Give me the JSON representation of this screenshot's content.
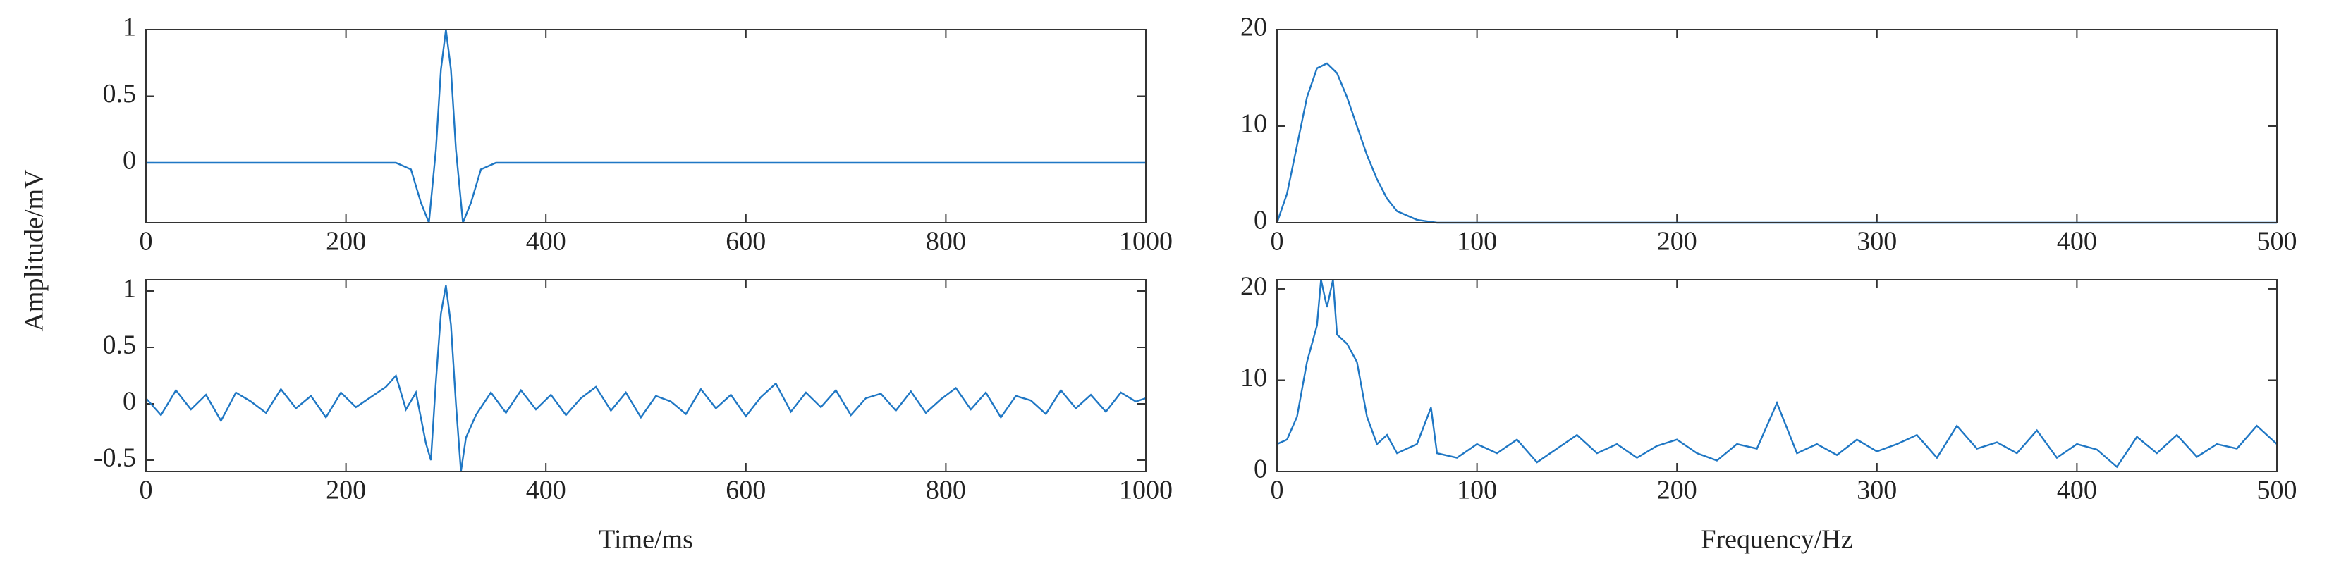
{
  "chart_data": [
    {
      "type": "line",
      "ylabel": "Amplitude/mV",
      "color": "#1f77c4",
      "x": [
        0,
        250,
        265,
        275,
        283,
        290,
        295,
        300,
        305,
        310,
        317,
        325,
        335,
        350,
        1000
      ],
      "values": [
        0,
        0,
        -0.05,
        -0.3,
        -0.45,
        0.1,
        0.7,
        1,
        0.7,
        0.1,
        -0.45,
        -0.3,
        -0.05,
        0,
        0
      ],
      "xlim": [
        0,
        1000
      ],
      "xticks": [
        0,
        200,
        400,
        600,
        800,
        1000
      ],
      "ylim": [
        -0.45,
        1
      ],
      "yticks": [
        0,
        0.5,
        1
      ]
    },
    {
      "type": "line",
      "color": "#1f77c4",
      "x": [
        0,
        5,
        10,
        15,
        20,
        25,
        30,
        35,
        40,
        45,
        50,
        55,
        60,
        70,
        80,
        500
      ],
      "values": [
        0,
        3,
        8,
        13,
        16,
        16.5,
        15.5,
        13,
        10,
        7,
        4.5,
        2.5,
        1.2,
        0.3,
        0,
        0
      ],
      "xlim": [
        0,
        500
      ],
      "xticks": [
        0,
        100,
        200,
        300,
        400,
        500
      ],
      "ylim": [
        0,
        20
      ],
      "yticks": [
        0,
        10,
        20
      ]
    },
    {
      "type": "line",
      "xlabel": "Time/ms",
      "color": "#1f77c4",
      "x": [
        0,
        15,
        30,
        45,
        60,
        75,
        90,
        105,
        120,
        135,
        150,
        165,
        180,
        195,
        210,
        225,
        240,
        250,
        260,
        270,
        280,
        285,
        290,
        295,
        300,
        305,
        310,
        315,
        320,
        330,
        345,
        360,
        375,
        390,
        405,
        420,
        435,
        450,
        465,
        480,
        495,
        510,
        525,
        540,
        555,
        570,
        585,
        600,
        615,
        630,
        645,
        660,
        675,
        690,
        705,
        720,
        735,
        750,
        765,
        780,
        795,
        810,
        825,
        840,
        855,
        870,
        885,
        900,
        915,
        930,
        945,
        960,
        975,
        990,
        1000
      ],
      "values": [
        0.05,
        -0.1,
        0.12,
        -0.05,
        0.08,
        -0.15,
        0.1,
        0.02,
        -0.08,
        0.13,
        -0.04,
        0.07,
        -0.12,
        0.1,
        -0.03,
        0.06,
        0.15,
        0.25,
        -0.05,
        0.1,
        -0.35,
        -0.5,
        0.2,
        0.8,
        1.05,
        0.7,
        0.0,
        -0.6,
        -0.3,
        -0.1,
        0.1,
        -0.08,
        0.12,
        -0.05,
        0.08,
        -0.1,
        0.05,
        0.15,
        -0.06,
        0.1,
        -0.12,
        0.07,
        0.02,
        -0.09,
        0.13,
        -0.04,
        0.08,
        -0.11,
        0.06,
        0.18,
        -0.07,
        0.1,
        -0.03,
        0.12,
        -0.1,
        0.05,
        0.09,
        -0.06,
        0.11,
        -0.08,
        0.04,
        0.14,
        -0.05,
        0.1,
        -0.12,
        0.07,
        0.03,
        -0.09,
        0.12,
        -0.04,
        0.08,
        -0.07,
        0.1,
        0.02,
        0.05
      ],
      "xlim": [
        0,
        1000
      ],
      "xticks": [
        0,
        200,
        400,
        600,
        800,
        1000
      ],
      "ylim": [
        -0.6,
        1.1
      ],
      "yticks": [
        -0.5,
        0,
        0.5,
        1
      ]
    },
    {
      "type": "line",
      "xlabel": "Frequency/Hz",
      "color": "#1f77c4",
      "x": [
        0,
        5,
        10,
        15,
        20,
        22,
        25,
        28,
        30,
        35,
        40,
        45,
        50,
        55,
        60,
        70,
        77,
        80,
        90,
        100,
        110,
        120,
        130,
        140,
        150,
        160,
        170,
        180,
        190,
        200,
        210,
        220,
        230,
        240,
        250,
        260,
        270,
        280,
        290,
        300,
        310,
        320,
        330,
        340,
        350,
        360,
        370,
        380,
        390,
        400,
        410,
        420,
        430,
        440,
        450,
        460,
        470,
        480,
        490,
        500
      ],
      "values": [
        3,
        3.5,
        6,
        12,
        16,
        21,
        18,
        21,
        15,
        14,
        12,
        6,
        3,
        4,
        2,
        3,
        7,
        2,
        1.5,
        3,
        2,
        3.5,
        1,
        2.5,
        4,
        2,
        3,
        1.5,
        2.8,
        3.5,
        2,
        1.2,
        3,
        2.5,
        7.5,
        2,
        3,
        1.8,
        3.5,
        2.2,
        3,
        4,
        1.5,
        5,
        2.5,
        3.2,
        2,
        4.5,
        1.5,
        3,
        2.4,
        0.5,
        3.8,
        2,
        4,
        1.6,
        3,
        2.5,
        5,
        3
      ],
      "xlim": [
        0,
        500
      ],
      "xticks": [
        0,
        100,
        200,
        300,
        400,
        500
      ],
      "ylim": [
        0,
        21
      ],
      "yticks": [
        0,
        10,
        20
      ]
    }
  ]
}
